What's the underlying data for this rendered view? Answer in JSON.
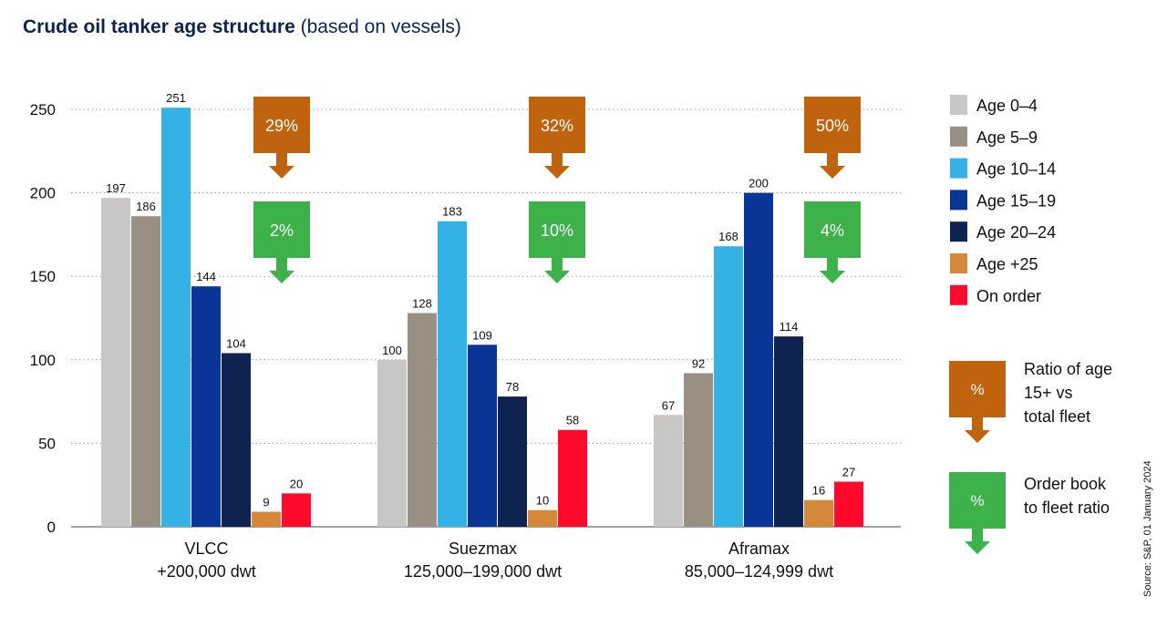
{
  "title": {
    "main": "Crude oil tanker age structure",
    "sub": "(based on vessels)"
  },
  "source": "Source: S&P, 01 January 2024",
  "legend_arrows": [
    {
      "symbol": "%",
      "label_lines": [
        "Ratio of age",
        "15+ vs",
        "total fleet"
      ],
      "color": "#c0630f"
    },
    {
      "symbol": "%",
      "label_lines": [
        "Order book",
        "to fleet ratio"
      ],
      "color": "#3db24a"
    }
  ],
  "chart_data": {
    "type": "bar",
    "categories": [
      [
        "VLCC",
        "+200,000 dwt"
      ],
      [
        "Suezmax",
        "125,000–199,000 dwt"
      ],
      [
        "Aframax",
        "85,000–124,999 dwt"
      ]
    ],
    "series": [
      {
        "name": "Age 0–4",
        "color": "#c8c7c6",
        "values": [
          197,
          100,
          67
        ]
      },
      {
        "name": "Age 5–9",
        "color": "#9a8f83",
        "values": [
          186,
          128,
          92
        ]
      },
      {
        "name": "Age 10–14",
        "color": "#34b2e6",
        "values": [
          251,
          183,
          168
        ]
      },
      {
        "name": "Age 15–19",
        "color": "#0a3596",
        "values": [
          144,
          109,
          200
        ]
      },
      {
        "name": "Age 20–24",
        "color": "#0f2350",
        "values": [
          104,
          78,
          114
        ]
      },
      {
        "name": "Age +25",
        "color": "#d6883a",
        "values": [
          9,
          10,
          16
        ]
      },
      {
        "name": "On order",
        "color": "#fe0a2d",
        "values": [
          20,
          58,
          27
        ]
      }
    ],
    "ratio_age15_to_fleet": [
      "29%",
      "32%",
      "50%"
    ],
    "order_book_to_fleet": [
      "2%",
      "10%",
      "4%"
    ],
    "ylim": [
      0,
      250
    ],
    "yticks": [
      0,
      50,
      100,
      150,
      200,
      250
    ],
    "grid": true,
    "legend": "right"
  }
}
